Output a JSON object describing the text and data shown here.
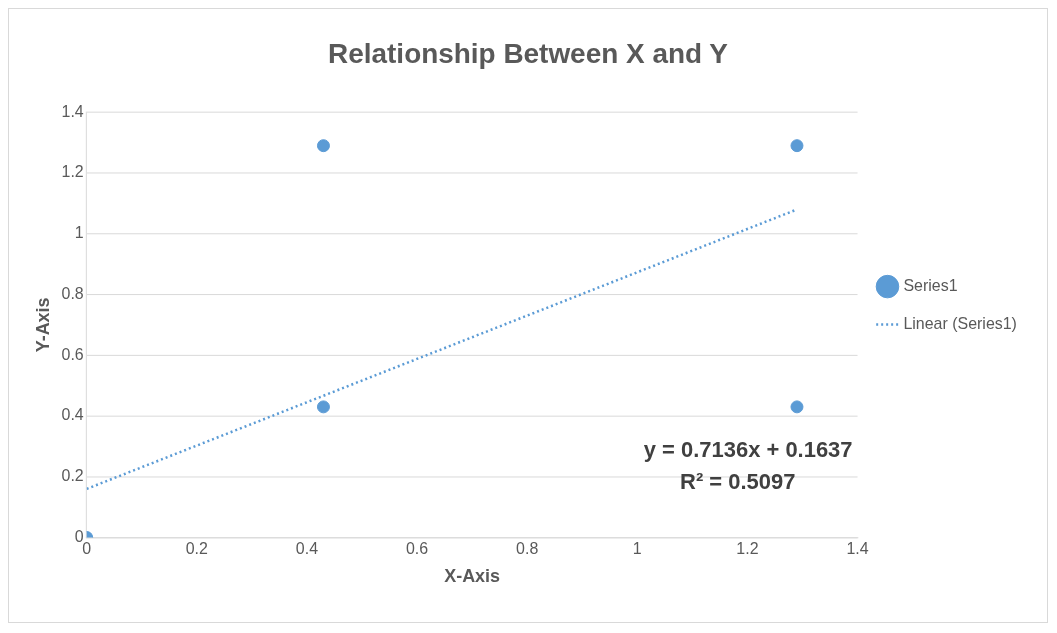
{
  "chart_data": {
    "type": "scatter",
    "title": "Relationship Between X and Y",
    "xlabel": "X-Axis",
    "ylabel": "Y-Axis",
    "series": [
      {
        "name": "Series1",
        "type": "scatter",
        "color": "#5b9bd5",
        "x": [
          0,
          0.43,
          0.43,
          1.29,
          1.29
        ],
        "values": [
          0,
          1.29,
          0.43,
          1.29,
          0.43
        ],
        "marker": "circle"
      },
      {
        "name": "Linear (Series1)",
        "type": "line",
        "color": "#5b9bd5",
        "x": [
          0,
          1.29
        ],
        "values": [
          0.16,
          1.08
        ],
        "line_style": "dotted",
        "marker": "none"
      }
    ],
    "xlim": [
      0,
      1.4
    ],
    "xticks": [
      0,
      0.2,
      0.4,
      0.6,
      0.8,
      1,
      1.2,
      1.4
    ],
    "ylim": [
      0,
      1.4
    ],
    "yticks": [
      0,
      0.2,
      0.4,
      0.6,
      0.8,
      1,
      1.2,
      1.4
    ],
    "grid": "y",
    "legend": "right",
    "annotations": [
      "y = 0.7136x + 0.1637",
      "R² = 0.5097"
    ]
  }
}
